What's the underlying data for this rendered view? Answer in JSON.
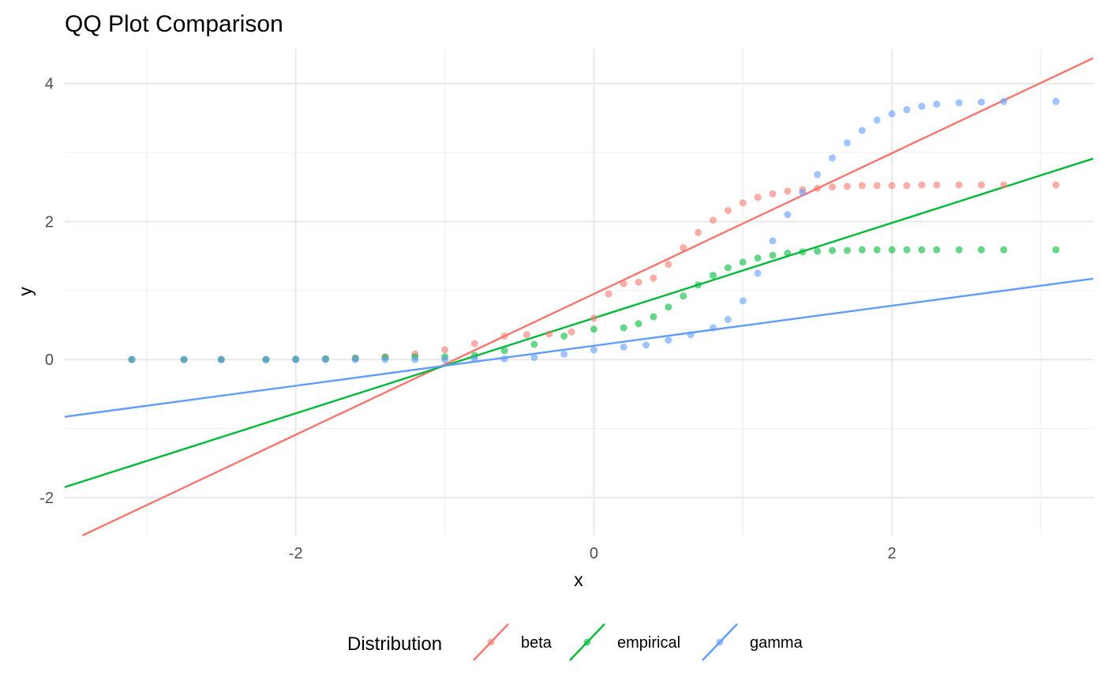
{
  "chart_data": {
    "type": "scatter",
    "title": "QQ Plot Comparison",
    "xlabel": "x",
    "ylabel": "y",
    "xlim": [
      -3.55,
      3.35
    ],
    "ylim": [
      -2.55,
      4.5
    ],
    "xticks": [
      -2,
      0,
      2
    ],
    "xtick_labels": [
      "-2",
      "0",
      "2"
    ],
    "yticks": [
      -2,
      0,
      2,
      4
    ],
    "ytick_labels": [
      "-2",
      "0",
      "2",
      "4"
    ],
    "grid": true,
    "legend_position": "bottom",
    "legend_title": "Distribution",
    "series": [
      {
        "name": "beta",
        "color": "#F8766D",
        "line": {
          "intercept": 0.95,
          "slope": 1.02
        },
        "points": [
          [
            -3.1,
            0
          ],
          [
            -2.75,
            0
          ],
          [
            -2.5,
            0
          ],
          [
            -2.2,
            0
          ],
          [
            -2.0,
            0.003
          ],
          [
            -1.8,
            0.01
          ],
          [
            -1.6,
            0.02
          ],
          [
            -1.4,
            0.04
          ],
          [
            -1.2,
            0.08
          ],
          [
            -1.0,
            0.14
          ],
          [
            -0.8,
            0.23
          ],
          [
            -0.6,
            0.34
          ],
          [
            -0.45,
            0.36
          ],
          [
            -0.3,
            0.37
          ],
          [
            -0.15,
            0.4
          ],
          [
            0.0,
            0.6
          ],
          [
            0.1,
            0.95
          ],
          [
            0.2,
            1.1
          ],
          [
            0.3,
            1.12
          ],
          [
            0.4,
            1.18
          ],
          [
            0.5,
            1.38
          ],
          [
            0.6,
            1.62
          ],
          [
            0.7,
            1.84
          ],
          [
            0.8,
            2.02
          ],
          [
            0.9,
            2.16
          ],
          [
            1.0,
            2.27
          ],
          [
            1.1,
            2.35
          ],
          [
            1.2,
            2.4
          ],
          [
            1.3,
            2.44
          ],
          [
            1.4,
            2.46
          ],
          [
            1.5,
            2.48
          ],
          [
            1.6,
            2.5
          ],
          [
            1.7,
            2.51
          ],
          [
            1.8,
            2.52
          ],
          [
            1.9,
            2.52
          ],
          [
            2.0,
            2.52
          ],
          [
            2.1,
            2.52
          ],
          [
            2.2,
            2.53
          ],
          [
            2.3,
            2.53
          ],
          [
            2.45,
            2.53
          ],
          [
            2.6,
            2.53
          ],
          [
            2.75,
            2.53
          ],
          [
            3.1,
            2.53
          ]
        ]
      },
      {
        "name": "empirical",
        "color": "#00BA38",
        "line": {
          "intercept": 0.6,
          "slope": 0.69
        },
        "points": [
          [
            -3.1,
            0
          ],
          [
            -2.75,
            0
          ],
          [
            -2.5,
            0
          ],
          [
            -2.2,
            0
          ],
          [
            -2.0,
            0.003
          ],
          [
            -1.8,
            0.01
          ],
          [
            -1.6,
            0.02
          ],
          [
            -1.4,
            0.03
          ],
          [
            -1.2,
            0.04
          ],
          [
            -1.0,
            0.04
          ],
          [
            -0.8,
            0.06
          ],
          [
            -0.6,
            0.13
          ],
          [
            -0.4,
            0.22
          ],
          [
            -0.2,
            0.34
          ],
          [
            0.0,
            0.44
          ],
          [
            0.2,
            0.46
          ],
          [
            0.3,
            0.52
          ],
          [
            0.4,
            0.62
          ],
          [
            0.5,
            0.76
          ],
          [
            0.6,
            0.92
          ],
          [
            0.7,
            1.08
          ],
          [
            0.8,
            1.22
          ],
          [
            0.9,
            1.33
          ],
          [
            1.0,
            1.41
          ],
          [
            1.1,
            1.47
          ],
          [
            1.2,
            1.51
          ],
          [
            1.3,
            1.54
          ],
          [
            1.4,
            1.56
          ],
          [
            1.5,
            1.57
          ],
          [
            1.6,
            1.58
          ],
          [
            1.7,
            1.58
          ],
          [
            1.8,
            1.59
          ],
          [
            1.9,
            1.59
          ],
          [
            2.0,
            1.59
          ],
          [
            2.1,
            1.59
          ],
          [
            2.2,
            1.59
          ],
          [
            2.3,
            1.59
          ],
          [
            2.45,
            1.59
          ],
          [
            2.6,
            1.59
          ],
          [
            2.75,
            1.59
          ],
          [
            3.1,
            1.59
          ]
        ]
      },
      {
        "name": "gamma",
        "color": "#619CFF",
        "line": {
          "intercept": 0.2,
          "slope": 0.29
        },
        "points": [
          [
            -3.1,
            0
          ],
          [
            -2.75,
            0
          ],
          [
            -2.5,
            0
          ],
          [
            -2.2,
            0
          ],
          [
            -2.0,
            0
          ],
          [
            -1.8,
            0
          ],
          [
            -1.6,
            0
          ],
          [
            -1.4,
            0
          ],
          [
            -1.2,
            0
          ],
          [
            -1.0,
            0
          ],
          [
            -0.8,
            0.005
          ],
          [
            -0.6,
            0.01
          ],
          [
            -0.4,
            0.03
          ],
          [
            -0.2,
            0.08
          ],
          [
            0.0,
            0.14
          ],
          [
            0.2,
            0.18
          ],
          [
            0.35,
            0.21
          ],
          [
            0.5,
            0.28
          ],
          [
            0.65,
            0.36
          ],
          [
            0.8,
            0.46
          ],
          [
            0.9,
            0.58
          ],
          [
            1.0,
            0.85
          ],
          [
            1.1,
            1.25
          ],
          [
            1.2,
            1.72
          ],
          [
            1.3,
            2.1
          ],
          [
            1.4,
            2.42
          ],
          [
            1.5,
            2.68
          ],
          [
            1.6,
            2.92
          ],
          [
            1.7,
            3.14
          ],
          [
            1.8,
            3.32
          ],
          [
            1.9,
            3.47
          ],
          [
            2.0,
            3.56
          ],
          [
            2.1,
            3.62
          ],
          [
            2.2,
            3.67
          ],
          [
            2.3,
            3.7
          ],
          [
            2.45,
            3.72
          ],
          [
            2.6,
            3.73
          ],
          [
            2.75,
            3.74
          ],
          [
            3.1,
            3.74
          ]
        ]
      }
    ]
  }
}
